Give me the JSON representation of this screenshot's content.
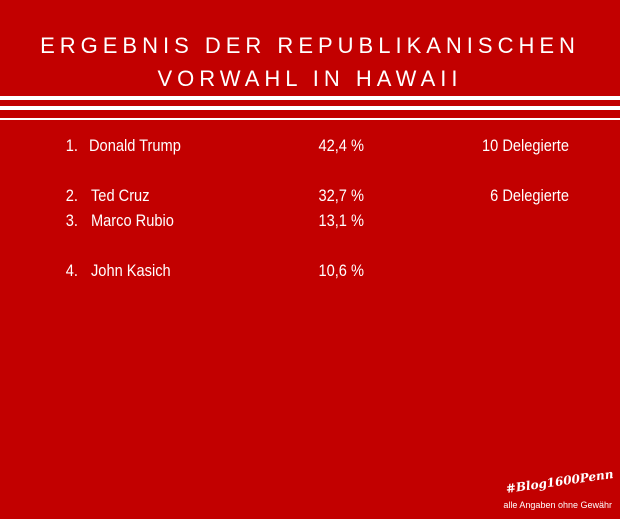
{
  "title": {
    "line1": "ERGEBNIS DER REPUBLIKANISCHEN",
    "line2": "VORWAHL IN HAWAII"
  },
  "results": [
    {
      "rank": "1.",
      "name": "Donald Trump",
      "percent": "42,4 %",
      "delegates": "10 Delegierte"
    },
    {
      "rank": "2.",
      "name": "Ted Cruz",
      "percent": "32,7 %",
      "delegates": "6 Delegierte"
    },
    {
      "rank": "3.",
      "name": "Marco Rubio",
      "percent": "13,1 %",
      "delegates": ""
    },
    {
      "rank": "4.",
      "name": "John Kasich",
      "percent": "10,6 %",
      "delegates": ""
    }
  ],
  "footer": {
    "hashtag": "#Blog1600Penn",
    "disclaimer": "alle Angaben ohne Gewähr"
  },
  "colors": {
    "background": "#c20000",
    "text": "#ffffff"
  }
}
